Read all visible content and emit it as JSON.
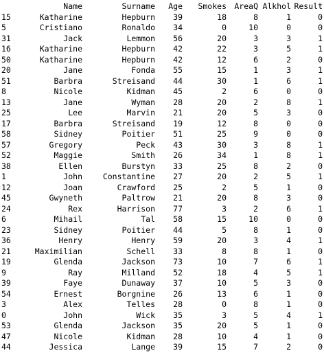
{
  "columns": [
    "",
    "Name",
    "Surname",
    "Age",
    "Smokes",
    "AreaQ",
    "Alkhol",
    "Result"
  ],
  "rows": [
    [
      "15",
      "Katharine",
      "Hepburn",
      "39",
      "18",
      "8",
      "1",
      "0"
    ],
    [
      "5",
      "Cristiano",
      "Ronaldo",
      "34",
      "0",
      "10",
      "0",
      "0"
    ],
    [
      "31",
      "Jack",
      "Lemmon",
      "56",
      "20",
      "3",
      "3",
      "1"
    ],
    [
      "16",
      "Katharine",
      "Hepburn",
      "42",
      "22",
      "3",
      "5",
      "1"
    ],
    [
      "50",
      "Katharine",
      "Hepburn",
      "42",
      "12",
      "6",
      "2",
      "0"
    ],
    [
      "20",
      "Jane",
      "Fonda",
      "55",
      "15",
      "1",
      "3",
      "1"
    ],
    [
      "51",
      "Barbra",
      "Streisand",
      "44",
      "30",
      "1",
      "6",
      "1"
    ],
    [
      "8",
      "Nicole",
      "Kidman",
      "45",
      "2",
      "6",
      "0",
      "0"
    ],
    [
      "13",
      "Jane",
      "Wyman",
      "28",
      "20",
      "2",
      "8",
      "1"
    ],
    [
      "25",
      "Lee",
      "Marvin",
      "21",
      "20",
      "5",
      "3",
      "0"
    ],
    [
      "17",
      "Barbra",
      "Streisand",
      "19",
      "12",
      "8",
      "0",
      "0"
    ],
    [
      "58",
      "Sidney",
      "Poitier",
      "51",
      "25",
      "9",
      "0",
      "0"
    ],
    [
      "57",
      "Gregory",
      "Peck",
      "43",
      "30",
      "3",
      "8",
      "1"
    ],
    [
      "52",
      "Maggie",
      "Smith",
      "26",
      "34",
      "1",
      "8",
      "1"
    ],
    [
      "38",
      "Ellen",
      "Burstyn",
      "33",
      "25",
      "8",
      "2",
      "0"
    ],
    [
      "1",
      "John",
      "Constantine",
      "27",
      "20",
      "2",
      "5",
      "1"
    ],
    [
      "12",
      "Joan",
      "Crawford",
      "25",
      "2",
      "5",
      "1",
      "0"
    ],
    [
      "45",
      "Gwyneth",
      "Paltrow",
      "21",
      "20",
      "8",
      "3",
      "0"
    ],
    [
      "24",
      "Rex",
      "Harrison",
      "77",
      "3",
      "2",
      "6",
      "1"
    ],
    [
      "6",
      "Mihail",
      "Tal",
      "58",
      "15",
      "10",
      "0",
      "0"
    ],
    [
      "23",
      "Sidney",
      "Poitier",
      "44",
      "5",
      "8",
      "1",
      "0"
    ],
    [
      "36",
      "Henry",
      "Henry",
      "59",
      "20",
      "3",
      "4",
      "1"
    ],
    [
      "21",
      "Maximilian",
      "Schell",
      "33",
      "8",
      "8",
      "1",
      "0"
    ],
    [
      "19",
      "Glenda",
      "Jackson",
      "73",
      "10",
      "7",
      "6",
      "1"
    ],
    [
      "9",
      "Ray",
      "Milland",
      "52",
      "18",
      "4",
      "5",
      "1"
    ],
    [
      "39",
      "Faye",
      "Dunaway",
      "37",
      "10",
      "5",
      "3",
      "0"
    ],
    [
      "54",
      "Ernest",
      "Borgnine",
      "26",
      "13",
      "6",
      "1",
      "0"
    ],
    [
      "3",
      "Alex",
      "Telles",
      "28",
      "0",
      "8",
      "1",
      "0"
    ],
    [
      "0",
      "John",
      "Wick",
      "35",
      "3",
      "5",
      "4",
      "1"
    ],
    [
      "53",
      "Glenda",
      "Jackson",
      "35",
      "20",
      "5",
      "1",
      "0"
    ],
    [
      "47",
      "Nicole",
      "Kidman",
      "28",
      "10",
      "4",
      "1",
      "0"
    ],
    [
      "44",
      "Jessica",
      "Lange",
      "39",
      "15",
      "7",
      "2",
      "0"
    ]
  ]
}
